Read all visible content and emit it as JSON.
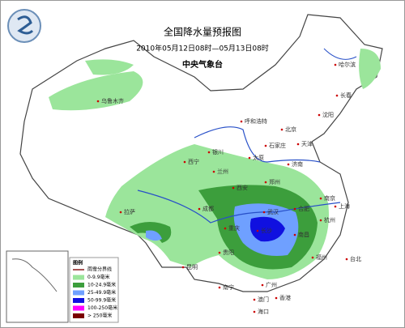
{
  "header": {
    "title": "全国降水量预报图",
    "period": "2010年05月12日08时—05月13日08时",
    "issuer": "中央气象台"
  },
  "cities": [
    "哈尔滨",
    "长春",
    "沈阳",
    "乌鲁木齐",
    "呼和浩特",
    "北京",
    "天津",
    "石家庄",
    "太原",
    "济南",
    "银川",
    "兰州",
    "西宁",
    "西安",
    "郑州",
    "南京",
    "上海",
    "合肥",
    "武汉",
    "杭州",
    "成都",
    "重庆",
    "拉萨",
    "贵阳",
    "长沙",
    "南昌",
    "福州",
    "昆明",
    "南宁",
    "广州",
    "台北",
    "香港",
    "澳门",
    "海口"
  ],
  "legend": {
    "title": "图例",
    "items": [
      {
        "label": "雨雪分界线",
        "color": "#8b1a1a"
      },
      {
        "label": "0-9.9毫米",
        "color": "#9be59b"
      },
      {
        "label": "10-24.9毫米",
        "color": "#3c9e3c"
      },
      {
        "label": "25-49.9毫米",
        "color": "#6fa0ff"
      },
      {
        "label": "50-99.9毫米",
        "color": "#1010e0"
      },
      {
        "label": "100-250毫米",
        "color": "#ff00ff"
      },
      {
        "label": "> 250毫米",
        "color": "#7a0000"
      }
    ]
  }
}
